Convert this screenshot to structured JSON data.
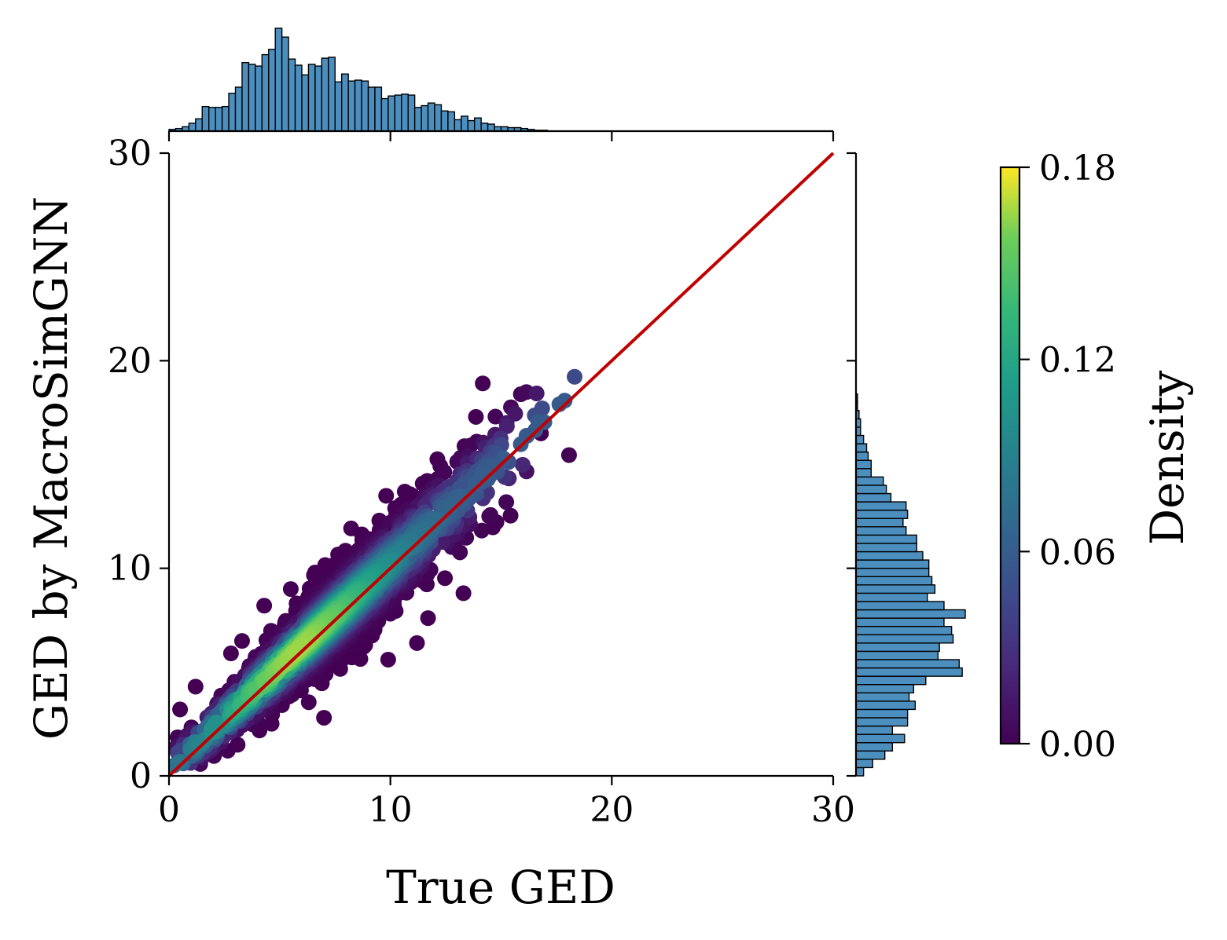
{
  "chart_data": {
    "type": "scatter",
    "title": "",
    "xlabel": "True GED",
    "ylabel": "GED by MacroSimGNN",
    "xlim": [
      0,
      30
    ],
    "ylim": [
      0,
      30
    ],
    "xticks": [
      "0",
      "10",
      "20",
      "30"
    ],
    "yticks": [
      "0",
      "10",
      "20",
      "30"
    ],
    "reference_line": {
      "x": [
        0,
        30
      ],
      "y": [
        0,
        30
      ],
      "color": "#c00000"
    },
    "scatter_color_by": "Density",
    "colormap": "viridis",
    "colorbar": {
      "label": "Density",
      "min": 0.0,
      "max": 0.18,
      "ticks": [
        "0.00",
        "0.06",
        "0.12",
        "0.18"
      ]
    },
    "scatter_extent": {
      "x": [
        0,
        18.8
      ],
      "y": [
        0.5,
        20
      ]
    },
    "scatter_outliers": [
      {
        "x": 1.2,
        "y": 4.3
      },
      {
        "x": 0.5,
        "y": 3.2
      },
      {
        "x": 4.3,
        "y": 8.2
      },
      {
        "x": 5.5,
        "y": 9.0
      },
      {
        "x": 8.0,
        "y": 10.8
      },
      {
        "x": 9.5,
        "y": 12.3
      },
      {
        "x": 11.0,
        "y": 13.5
      },
      {
        "x": 13.5,
        "y": 14.8
      },
      {
        "x": 13.9,
        "y": 16.1
      },
      {
        "x": 13.3,
        "y": 8.8
      },
      {
        "x": 11.7,
        "y": 7.6
      },
      {
        "x": 11.2,
        "y": 6.4
      },
      {
        "x": 9.9,
        "y": 5.6
      },
      {
        "x": 7.0,
        "y": 2.8
      },
      {
        "x": 3.1,
        "y": 1.5
      },
      {
        "x": 16.8,
        "y": 16.5
      },
      {
        "x": 2.8,
        "y": 5.9
      },
      {
        "x": 3.3,
        "y": 6.5
      },
      {
        "x": 6.6,
        "y": 9.8
      },
      {
        "x": 10.3,
        "y": 12.6
      }
    ],
    "marginal_x_hist": {
      "bin_width": 0.3,
      "x_start": 0,
      "counts": [
        2,
        3,
        5,
        9,
        14,
        28,
        27,
        27,
        28,
        43,
        50,
        78,
        76,
        74,
        87,
        93,
        117,
        107,
        82,
        75,
        64,
        76,
        74,
        83,
        84,
        56,
        65,
        57,
        58,
        57,
        50,
        50,
        37,
        40,
        41,
        42,
        41,
        27,
        29,
        32,
        30,
        23,
        22,
        13,
        17,
        12,
        15,
        9,
        8,
        5,
        5,
        4,
        4,
        3,
        2,
        1,
        1,
        0,
        0,
        0,
        0,
        0,
        0
      ]
    },
    "marginal_y_hist": {
      "bin_width": 0.4,
      "y_start": 0,
      "counts": [
        5,
        11,
        19,
        24,
        32,
        24,
        34,
        34,
        39,
        35,
        38,
        46,
        70,
        68,
        54,
        55,
        64,
        63,
        58,
        72,
        58,
        47,
        52,
        50,
        48,
        48,
        44,
        40,
        40,
        33,
        31,
        34,
        33,
        23,
        20,
        18,
        10,
        10,
        8,
        7,
        5,
        3,
        3,
        2,
        1,
        1,
        0,
        0,
        0,
        0
      ]
    }
  }
}
